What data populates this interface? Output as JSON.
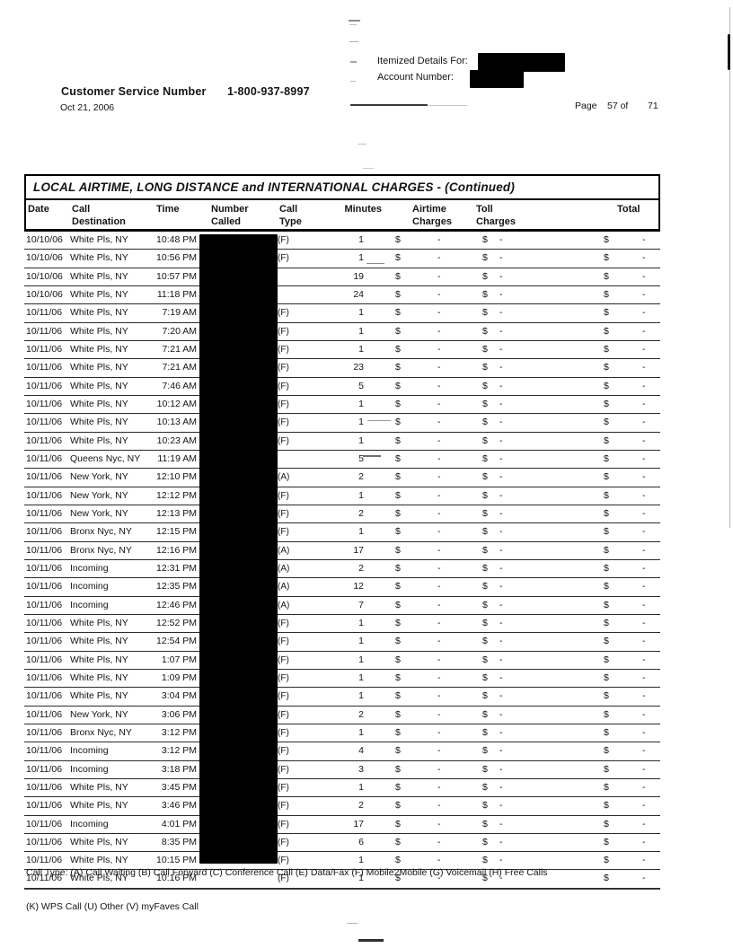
{
  "header": {
    "customer_service_label": "Customer Service Number",
    "customer_service_number": "1-800-937-8997",
    "statement_date": "Oct 21, 2006",
    "itemized_details_label": "Itemized Details For:",
    "account_number_label": "Account Number:",
    "page_label": "Page",
    "page_info": "57 of",
    "page_total": "71"
  },
  "table": {
    "title": "LOCAL AIRTIME, LONG DISTANCE and INTERNATIONAL CHARGES - (Continued)",
    "columns": {
      "date": "Date",
      "destination": [
        "Call",
        "Destination"
      ],
      "time": "Time",
      "number_called": [
        "Number",
        "Called"
      ],
      "call_type": [
        "Call",
        "Type"
      ],
      "minutes": "Minutes",
      "airtime_charges": [
        "Airtime",
        "Charges"
      ],
      "toll_charges": [
        "Toll",
        "Charges"
      ],
      "total": "Total"
    },
    "charges": {
      "currency_symbol": "$",
      "empty_amount": "-"
    },
    "rows": [
      [
        "10/10/06",
        "White Pls, NY",
        "10:48 PM",
        "(F)",
        "1"
      ],
      [
        "10/10/06",
        "White Pls, NY",
        "10:56 PM",
        "(F)",
        "1"
      ],
      [
        "10/10/06",
        "White Pls, NY",
        "10:57 PM",
        "",
        "19"
      ],
      [
        "10/10/06",
        "White Pls, NY",
        "11:18 PM",
        "",
        "24"
      ],
      [
        "10/11/06",
        "White Pls, NY",
        "7:19 AM",
        "(F)",
        "1"
      ],
      [
        "10/11/06",
        "White Pls, NY",
        "7:20 AM",
        "(F)",
        "1"
      ],
      [
        "10/11/06",
        "White Pls, NY",
        "7:21 AM",
        "(F)",
        "1"
      ],
      [
        "10/11/06",
        "White Pls, NY",
        "7:21 AM",
        "(F)",
        "23"
      ],
      [
        "10/11/06",
        "White Pls, NY",
        "7:46 AM",
        "(F)",
        "5"
      ],
      [
        "10/11/06",
        "White Pls, NY",
        "10:12 AM",
        "(F)",
        "1"
      ],
      [
        "10/11/06",
        "White Pls, NY",
        "10:13 AM",
        "(F)",
        "1"
      ],
      [
        "10/11/06",
        "White Pls, NY",
        "10:23 AM",
        "(F)",
        "1"
      ],
      [
        "10/11/06",
        "Queens Nyc, NY",
        "11:19 AM",
        "",
        "5"
      ],
      [
        "10/11/06",
        "New York, NY",
        "12:10 PM",
        "(A)",
        "2"
      ],
      [
        "10/11/06",
        "New York, NY",
        "12:12 PM",
        "(F)",
        "1"
      ],
      [
        "10/11/06",
        "New York, NY",
        "12:13 PM",
        "(F)",
        "2"
      ],
      [
        "10/11/06",
        "Bronx Nyc, NY",
        "12:15 PM",
        "(F)",
        "1"
      ],
      [
        "10/11/06",
        "Bronx Nyc, NY",
        "12:16 PM",
        "(A)",
        "17"
      ],
      [
        "10/11/06",
        "Incoming",
        "12:31 PM",
        "(A)",
        "2"
      ],
      [
        "10/11/06",
        "Incoming",
        "12:35 PM",
        "(A)",
        "12"
      ],
      [
        "10/11/06",
        "Incoming",
        "12:46 PM",
        "(A)",
        "7"
      ],
      [
        "10/11/06",
        "White Pls, NY",
        "12:52 PM",
        "(F)",
        "1"
      ],
      [
        "10/11/06",
        "White Pls, NY",
        "12:54 PM",
        "(F)",
        "1"
      ],
      [
        "10/11/06",
        "White Pls, NY",
        "1:07 PM",
        "(F)",
        "1"
      ],
      [
        "10/11/06",
        "White Pls, NY",
        "1:09 PM",
        "(F)",
        "1"
      ],
      [
        "10/11/06",
        "White Pls, NY",
        "3:04 PM",
        "(F)",
        "1"
      ],
      [
        "10/11/06",
        "New York, NY",
        "3:06 PM",
        "(F)",
        "2"
      ],
      [
        "10/11/06",
        "Bronx Nyc, NY",
        "3:12 PM",
        "(F)",
        "1"
      ],
      [
        "10/11/06",
        "Incoming",
        "3:12 PM",
        "(F)",
        "4"
      ],
      [
        "10/11/06",
        "Incoming",
        "3:18 PM",
        "(F)",
        "3"
      ],
      [
        "10/11/06",
        "White Pls, NY",
        "3:45 PM",
        "(F)",
        "1"
      ],
      [
        "10/11/06",
        "White Pls, NY",
        "3:46 PM",
        "(F)",
        "2"
      ],
      [
        "10/11/06",
        "Incoming",
        "4:01 PM",
        "(F)",
        "17"
      ],
      [
        "10/11/06",
        "White Pls, NY",
        "8:35 PM",
        "(F)",
        "6"
      ],
      [
        "10/11/06",
        "White Pls, NY",
        "10:15 PM",
        "(F)",
        "1"
      ],
      [
        "10/11/06",
        "White Pls, NY",
        "10:16 PM",
        "(F)",
        "1"
      ]
    ]
  },
  "footer": {
    "legend_line1": "Call Type: (A) Call Waiting (B) Call Forward (C) Conference Call (E) Data/Fax (F) Mobile2Mobile (G) Voicemail (H) Free Calls",
    "legend_line2": "(K) WPS Call (U) Other (V) myFaves Call"
  }
}
